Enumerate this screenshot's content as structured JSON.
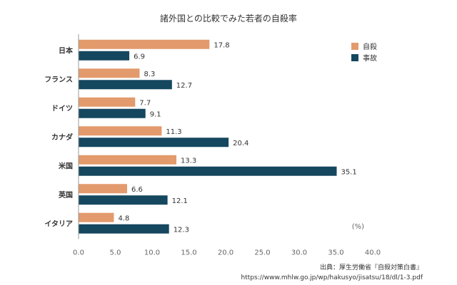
{
  "chart_data": {
    "type": "bar",
    "orientation": "horizontal",
    "title": "諸外国との比較でみた若者の自殺率",
    "categories": [
      "日本",
      "フランス",
      "ドイツ",
      "カナダ",
      "米国",
      "英国",
      "イタリア"
    ],
    "highlight_category": "日本",
    "series": [
      {
        "name": "自殺",
        "color": "#e39a6c",
        "values": [
          17.8,
          8.3,
          7.7,
          11.3,
          13.3,
          6.6,
          4.8
        ]
      },
      {
        "name": "事故",
        "color": "#15475f",
        "values": [
          6.9,
          12.7,
          9.1,
          20.4,
          35.1,
          12.1,
          12.3
        ]
      }
    ],
    "xlim": [
      0,
      40
    ],
    "x_ticks": [
      "0.0",
      "5.0",
      "10.0",
      "15.0",
      "20.0",
      "25.0",
      "30.0",
      "35.0",
      "40.0"
    ],
    "unit_label": "(%)",
    "legend_position": "top-right",
    "grid": false,
    "highlight_color": "#e0793f"
  },
  "source": {
    "line1": "出典：厚生労働省『自殺対策白書』",
    "line2": "https://www.mhlw.go.jp/wp/hakusyo/jisatsu/18/dl/1-3.pdf"
  }
}
